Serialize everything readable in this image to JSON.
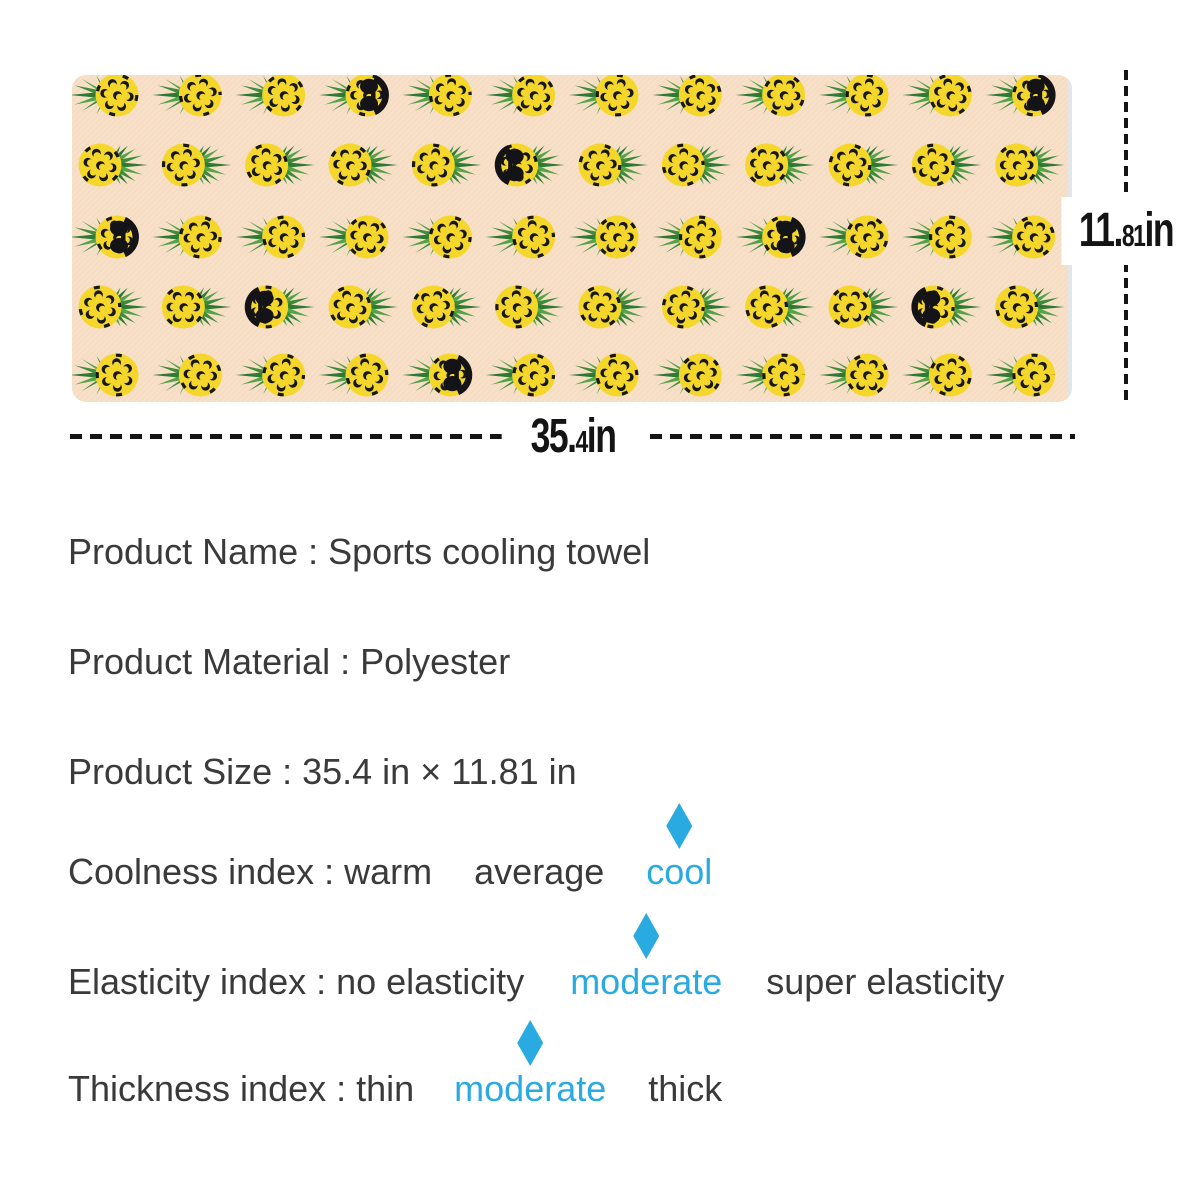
{
  "page": {
    "background": "#ffffff"
  },
  "towel": {
    "description": "peach towel with pickleball-pineapple pattern",
    "background_color": "#f8dfc6",
    "edge_color": "#dde8ee",
    "ball_color": "#f5d72b",
    "hole_color": "#17171a",
    "sunglasses_color": "#141418",
    "leaf_colors": [
      "#3c8c3c",
      "#2d7a33",
      "#55a247"
    ],
    "rows": [
      {
        "leaf_side": "left",
        "count": 12,
        "sunglasses_at": [
          4,
          12
        ]
      },
      {
        "leaf_side": "right",
        "count": 12,
        "sunglasses_at": [
          6
        ]
      },
      {
        "leaf_side": "left",
        "count": 12,
        "sunglasses_at": [
          1,
          9
        ]
      },
      {
        "leaf_side": "right",
        "count": 12,
        "sunglasses_at": [
          3,
          11
        ]
      },
      {
        "leaf_side": "left",
        "count": 12,
        "sunglasses_at": [
          5
        ]
      }
    ]
  },
  "dimensions": {
    "line_color": "#141414",
    "width_label": {
      "main": "35.",
      "small": "4",
      "unit": "in"
    },
    "height_label": {
      "main": "11.",
      "small": "81",
      "unit": "in"
    }
  },
  "specs": {
    "text_color": "#3a3a3a",
    "accent_color": "#29abe2",
    "lines": [
      {
        "id": "product-name",
        "segments": [
          {
            "text": "Product Name : Sports cooling towel"
          }
        ]
      },
      {
        "id": "product-material",
        "segments": [
          {
            "text": "Product Material : Polyester"
          }
        ]
      },
      {
        "id": "product-size",
        "segments": [
          {
            "text": "Product Size : 35.4 in × 11.81 in"
          }
        ]
      },
      {
        "id": "coolness-index",
        "segments": [
          {
            "text": "Coolness index : warm"
          },
          {
            "text": "average",
            "gap": 42
          },
          {
            "text": "cool",
            "gap": 42,
            "accent": true,
            "diamond": true
          }
        ]
      },
      {
        "id": "elasticity-index",
        "segments": [
          {
            "text": "Elasticity index : no elasticity"
          },
          {
            "text": "moderate",
            "gap": 46,
            "accent": true,
            "diamond": true
          },
          {
            "text": "super elasticity",
            "gap": 44
          }
        ]
      },
      {
        "id": "thickness-index",
        "segments": [
          {
            "text": "Thickness index : thin"
          },
          {
            "text": "moderate",
            "gap": 40,
            "accent": true,
            "diamond": true
          },
          {
            "text": "thick",
            "gap": 42
          }
        ]
      }
    ]
  }
}
